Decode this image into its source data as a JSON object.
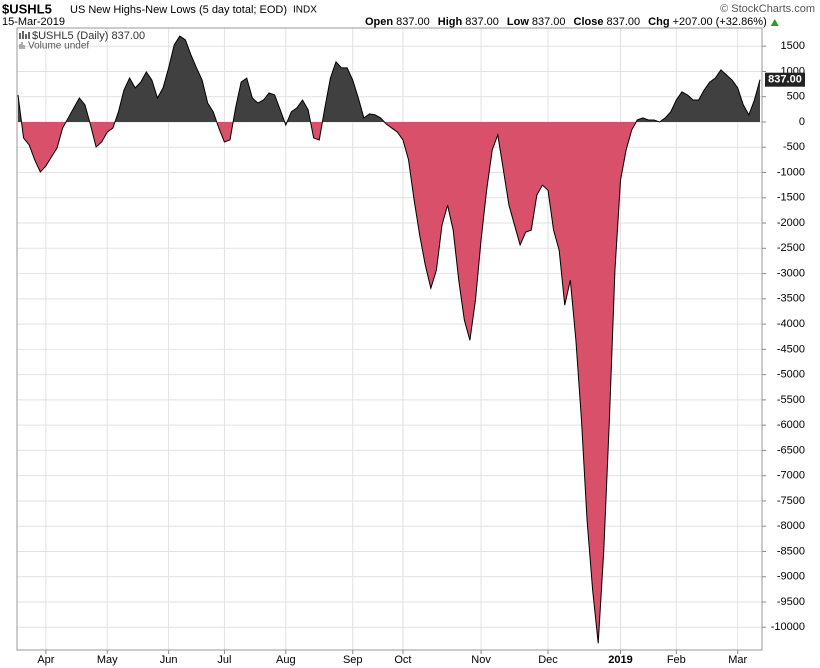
{
  "chart_data": {
    "type": "area",
    "symbol": "$USHL5",
    "title": "US New Highs-New Lows (5 day total; EOD)",
    "exchange": "INDX",
    "date": "15-Mar-2019",
    "source": "© StockCharts.com",
    "quote": [
      {
        "label": "Open",
        "text": "837.00"
      },
      {
        "label": "High",
        "text": "837.00"
      },
      {
        "label": "Low",
        "text": "837.00"
      },
      {
        "label": "Close",
        "text": "837.00"
      },
      {
        "label": "Chg",
        "text": "+207.00 (+32.86%)"
      }
    ],
    "legend": [
      "$USHL5 (Daily) 837.00",
      "Volume undef"
    ],
    "last_value_label": "837.00",
    "positive_color": "#404040",
    "negative_color": "#d9506a",
    "line_color": "#000000",
    "grid": true,
    "values": [
      535,
      -317,
      -455,
      -750,
      -990,
      -870,
      -690,
      -515,
      -120,
      80,
      280,
      475,
      340,
      -60,
      -495,
      -395,
      -200,
      -120,
      200,
      635,
      870,
      675,
      790,
      990,
      830,
      475,
      675,
      1070,
      1525,
      1700,
      1625,
      1330,
      1070,
      830,
      375,
      200,
      -120,
      -395,
      -355,
      280,
      790,
      870,
      475,
      375,
      435,
      575,
      535,
      240,
      -60,
      200,
      280,
      435,
      240,
      -317,
      -355,
      280,
      870,
      1190,
      1070,
      1070,
      830,
      475,
      80,
      160,
      140,
      80,
      -40,
      -120,
      -200,
      -355,
      -750,
      -1545,
      -2240,
      -2830,
      -3290,
      -2930,
      -2040,
      -1645,
      -2140,
      -3130,
      -3920,
      -4320,
      -3525,
      -2340,
      -1350,
      -555,
      -255,
      -950,
      -1645,
      -2040,
      -2435,
      -2180,
      -2140,
      -1445,
      -1250,
      -1350,
      -2140,
      -2535,
      -3625,
      -3130,
      -4320,
      -5900,
      -7880,
      -9265,
      -10315,
      -8475,
      -5900,
      -2930,
      -1150,
      -555,
      -160,
      40,
      80,
      40,
      40,
      0,
      80,
      200,
      435,
      595,
      535,
      435,
      435,
      635,
      790,
      870,
      1030,
      930,
      830,
      675,
      340,
      140,
      435,
      837
    ],
    "xticks": [
      {
        "value": 5,
        "label": "Apr"
      },
      {
        "value": 16,
        "label": "May"
      },
      {
        "value": 27,
        "label": "Jun"
      },
      {
        "value": 37,
        "label": "Jul"
      },
      {
        "value": 48,
        "label": "Aug"
      },
      {
        "value": 60,
        "label": "Sep"
      },
      {
        "value": 69,
        "label": "Oct"
      },
      {
        "value": 83,
        "label": "Nov"
      },
      {
        "value": 95,
        "label": "Dec"
      },
      {
        "value": 108,
        "label": "2019"
      },
      {
        "value": 118,
        "label": "Feb"
      },
      {
        "value": 129,
        "label": "Mar"
      }
    ],
    "ylim": [
      -10450,
      1860
    ],
    "yticks": [
      1500,
      1000,
      500,
      0,
      -500,
      -1000,
      -1500,
      -2000,
      -2500,
      -3000,
      -3500,
      -4000,
      -4500,
      -5000,
      -5500,
      -6000,
      -6500,
      -7000,
      -7500,
      -8000,
      -8500,
      -9000,
      -9500,
      -10000
    ]
  }
}
